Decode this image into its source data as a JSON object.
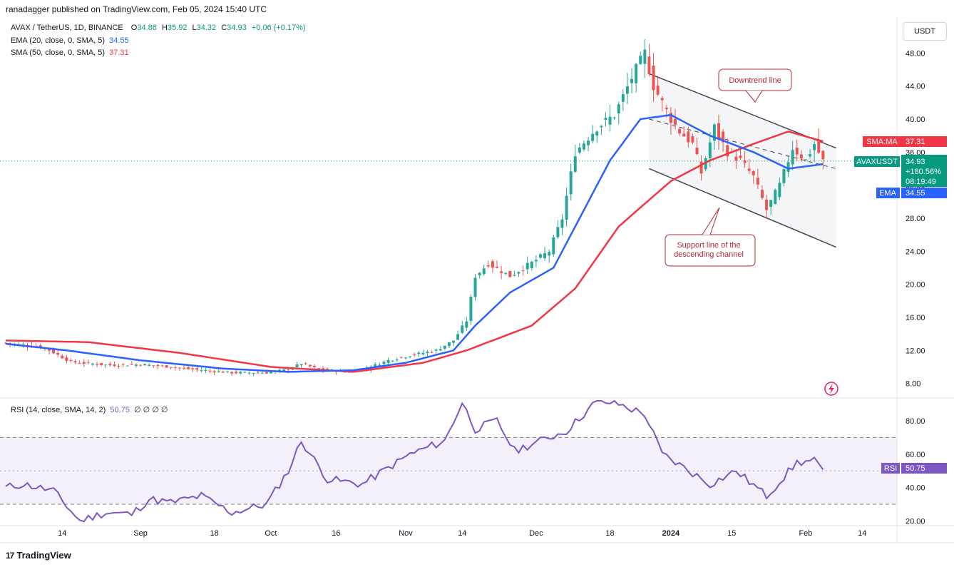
{
  "caption": "ranadagger published on TradingView.com, Feb 05, 2024 15:40 UTC",
  "currency": "USDT",
  "legend": {
    "symbol": "AVAX / TetherUS, 1D, BINANCE",
    "o_label": "O",
    "o": "34.86",
    "h_label": "H",
    "h": "35.92",
    "l_label": "L",
    "l": "34.32",
    "c_label": "C",
    "c": "34.93",
    "change": "+0.06 (+0.17%)",
    "ema_label": "EMA (20, close, 0, SMA, 5)",
    "ema_value": "34.55",
    "sma_label": "SMA (50, close, 0, SMA, 5)",
    "sma_value": "37.31",
    "rsi_label": "RSI (14, close, SMA, 14, 2)",
    "rsi_value": "50.75",
    "rsi_extra": "∅ ∅ ∅ ∅"
  },
  "badges": {
    "sma_name": "SMA:MA",
    "sma_value": "37.31",
    "price_name": "AVAXUSDT",
    "price_value": "34.93",
    "price_change": "+180.56%",
    "countdown": "08:19:49",
    "ema_name": "EMA",
    "ema_value": "34.55",
    "rsi_name": "RSI",
    "rsi_value": "50.75"
  },
  "annotations": {
    "downtrend": "Downtrend line",
    "support_line1": "Support line of the",
    "support_line2": "descending channel"
  },
  "footer": {
    "brand": "TradingView",
    "logo_text": "17"
  },
  "colors": {
    "up": "#26a69a",
    "down": "#ef5350",
    "ema": "#2962ff",
    "sma": "#f23645",
    "rsi": "#7e57c2",
    "channel": "#434651",
    "annotation": "#b22833"
  },
  "chart_data": [
    {
      "type": "candlestick",
      "title": "AVAX / TetherUS, 1D, BINANCE",
      "ylim": [
        6.5,
        52
      ],
      "y_ticks": [
        "8.00",
        "12.00",
        "16.00",
        "20.00",
        "24.00",
        "28.00",
        "32.00",
        "36.00",
        "40.00",
        "44.00",
        "48.00"
      ],
      "x_ticks": [
        "14",
        "Sep",
        "18",
        "Oct",
        "16",
        "Nov",
        "14",
        "Dec",
        "18",
        "2024",
        "15",
        "Feb",
        "14"
      ],
      "x_tick_dates": [
        "2023-08-14",
        "2023-09-01",
        "2023-09-18",
        "2023-10-01",
        "2023-10-16",
        "2023-11-01",
        "2023-11-14",
        "2023-12-01",
        "2023-12-18",
        "2024-01-01",
        "2024-01-15",
        "2024-02-01",
        "2024-02-14"
      ],
      "close_anchors": [
        [
          "2023-08-01",
          12.9
        ],
        [
          "2023-08-10",
          12.3
        ],
        [
          "2023-08-16",
          10.6
        ],
        [
          "2023-08-25",
          10.2
        ],
        [
          "2023-09-01",
          10.3
        ],
        [
          "2023-09-08",
          10.0
        ],
        [
          "2023-09-15",
          9.6
        ],
        [
          "2023-09-22",
          9.3
        ],
        [
          "2023-09-30",
          9.3
        ],
        [
          "2023-10-05",
          9.7
        ],
        [
          "2023-10-08",
          10.4
        ],
        [
          "2023-10-12",
          9.7
        ],
        [
          "2023-10-19",
          9.4
        ],
        [
          "2023-10-23",
          9.8
        ],
        [
          "2023-10-28",
          10.8
        ],
        [
          "2023-11-02",
          11.4
        ],
        [
          "2023-11-08",
          12.0
        ],
        [
          "2023-11-12",
          13.2
        ],
        [
          "2023-11-15",
          15.6
        ],
        [
          "2023-11-17",
          21.0
        ],
        [
          "2023-11-20",
          22.5
        ],
        [
          "2023-11-25",
          21.0
        ],
        [
          "2023-11-30",
          22.6
        ],
        [
          "2023-12-04",
          24.0
        ],
        [
          "2023-12-07",
          28.0
        ],
        [
          "2023-12-10",
          36.0
        ],
        [
          "2023-12-15",
          39.0
        ],
        [
          "2023-12-19",
          40.5
        ],
        [
          "2023-12-23",
          45.0
        ],
        [
          "2023-12-26",
          48.0
        ],
        [
          "2023-12-28",
          44.0
        ],
        [
          "2024-01-01",
          40.0
        ],
        [
          "2024-01-03",
          38.5
        ],
        [
          "2024-01-06",
          37.0
        ],
        [
          "2024-01-08",
          33.5
        ],
        [
          "2024-01-11",
          39.0
        ],
        [
          "2024-01-14",
          36.0
        ],
        [
          "2024-01-17",
          35.0
        ],
        [
          "2024-01-20",
          33.0
        ],
        [
          "2024-01-23",
          29.0
        ],
        [
          "2024-01-26",
          32.0
        ],
        [
          "2024-01-29",
          36.5
        ],
        [
          "2024-02-01",
          35.0
        ],
        [
          "2024-02-03",
          37.0
        ],
        [
          "2024-02-05",
          34.93
        ]
      ],
      "ema20_anchors": [
        [
          "2023-08-01",
          12.8
        ],
        [
          "2023-08-15",
          12.0
        ],
        [
          "2023-09-01",
          10.8
        ],
        [
          "2023-09-20",
          9.8
        ],
        [
          "2023-10-05",
          9.4
        ],
        [
          "2023-10-20",
          9.6
        ],
        [
          "2023-11-01",
          10.5
        ],
        [
          "2023-11-12",
          12.0
        ],
        [
          "2023-11-17",
          15.0
        ],
        [
          "2023-11-25",
          19.0
        ],
        [
          "2023-12-05",
          22.0
        ],
        [
          "2023-12-10",
          27.0
        ],
        [
          "2023-12-18",
          35.0
        ],
        [
          "2023-12-25",
          40.0
        ],
        [
          "2024-01-01",
          40.5
        ],
        [
          "2024-01-10",
          38.0
        ],
        [
          "2024-01-20",
          36.0
        ],
        [
          "2024-01-28",
          34.0
        ],
        [
          "2024-02-05",
          34.55
        ]
      ],
      "sma50_anchors": [
        [
          "2023-08-01",
          13.2
        ],
        [
          "2023-08-20",
          13.0
        ],
        [
          "2023-09-10",
          11.7
        ],
        [
          "2023-10-01",
          10.0
        ],
        [
          "2023-10-20",
          9.4
        ],
        [
          "2023-11-05",
          10.5
        ],
        [
          "2023-11-15",
          12.0
        ],
        [
          "2023-11-30",
          15.0
        ],
        [
          "2023-12-10",
          19.5
        ],
        [
          "2023-12-20",
          27.0
        ],
        [
          "2024-01-01",
          32.5
        ],
        [
          "2024-01-10",
          35.0
        ],
        [
          "2024-01-20",
          37.0
        ],
        [
          "2024-01-28",
          38.5
        ],
        [
          "2024-02-05",
          37.31
        ]
      ],
      "last_close": 34.93,
      "downtrend_line": [
        [
          "2023-12-27",
          45.5
        ],
        [
          "2024-02-08",
          36.5
        ]
      ],
      "mid_line": [
        [
          "2023-12-27",
          40.0
        ],
        [
          "2024-02-08",
          34.0
        ]
      ],
      "support_line": [
        [
          "2023-12-27",
          34.0
        ],
        [
          "2024-02-08",
          24.5
        ]
      ]
    },
    {
      "type": "line",
      "title": "RSI (14, close, SMA, 14, 2)",
      "ylim": [
        18,
        92
      ],
      "y_ticks": [
        "20.00",
        "40.00",
        "60.00",
        "80.00"
      ],
      "band": [
        30,
        70
      ],
      "last_value": 50.75,
      "rsi_anchors": [
        [
          "2023-08-01",
          40
        ],
        [
          "2023-08-05",
          42
        ],
        [
          "2023-08-12",
          38
        ],
        [
          "2023-08-18",
          20
        ],
        [
          "2023-08-24",
          25
        ],
        [
          "2023-08-30",
          24
        ],
        [
          "2023-09-03",
          33
        ],
        [
          "2023-09-08",
          31
        ],
        [
          "2023-09-15",
          35
        ],
        [
          "2023-09-22",
          25
        ],
        [
          "2023-09-30",
          30
        ],
        [
          "2023-10-05",
          50
        ],
        [
          "2023-10-08",
          68
        ],
        [
          "2023-10-14",
          45
        ],
        [
          "2023-10-22",
          42
        ],
        [
          "2023-11-02",
          60
        ],
        [
          "2023-11-10",
          68
        ],
        [
          "2023-11-14",
          91
        ],
        [
          "2023-11-17",
          75
        ],
        [
          "2023-11-22",
          80
        ],
        [
          "2023-11-26",
          62
        ],
        [
          "2023-12-02",
          68
        ],
        [
          "2023-12-08",
          74
        ],
        [
          "2023-12-15",
          92
        ],
        [
          "2023-12-20",
          90
        ],
        [
          "2023-12-26",
          84
        ],
        [
          "2023-12-30",
          60
        ],
        [
          "2024-01-04",
          52
        ],
        [
          "2024-01-10",
          42
        ],
        [
          "2024-01-16",
          50
        ],
        [
          "2024-01-23",
          35
        ],
        [
          "2024-01-30",
          55
        ],
        [
          "2024-02-03",
          56
        ],
        [
          "2024-02-05",
          50.75
        ]
      ]
    }
  ]
}
